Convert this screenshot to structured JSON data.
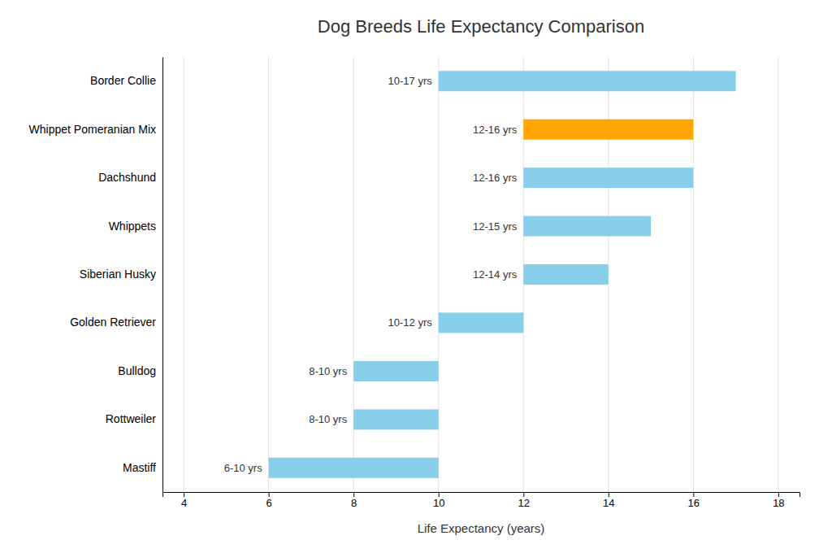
{
  "chart_data": {
    "type": "bar",
    "orientation": "horizontal",
    "title": "Dog Breeds Life Expectancy Comparison",
    "xlabel": "Life Expectancy (years)",
    "categories": [
      "Border Collie",
      "Whippet Pomeranian Mix",
      "Dachshund",
      "Whippets",
      "Siberian Husky",
      "Golden Retriever",
      "Bulldog",
      "Rottweiler",
      "Mastiff"
    ],
    "starts": [
      10,
      12,
      12,
      12,
      12,
      10,
      8,
      8,
      6
    ],
    "values": [
      17,
      16,
      16,
      15,
      14,
      12,
      10,
      10,
      10
    ],
    "value_labels": [
      "10-17 yrs",
      "12-16 yrs",
      "12-16 yrs",
      "12-15 yrs",
      "12-14 yrs",
      "10-12 yrs",
      "8-10 yrs",
      "8-10 yrs",
      "6-10 yrs"
    ],
    "data_labels": true,
    "colors": [
      "#87CEEB",
      "#FFA500",
      "#87CEEB",
      "#87CEEB",
      "#87CEEB",
      "#87CEEB",
      "#87CEEB",
      "#87CEEB",
      "#87CEEB"
    ],
    "xlim": [
      3.5,
      18.5
    ],
    "xticks": [
      4,
      6,
      8,
      10,
      12,
      14,
      16,
      18
    ],
    "grid": true
  }
}
